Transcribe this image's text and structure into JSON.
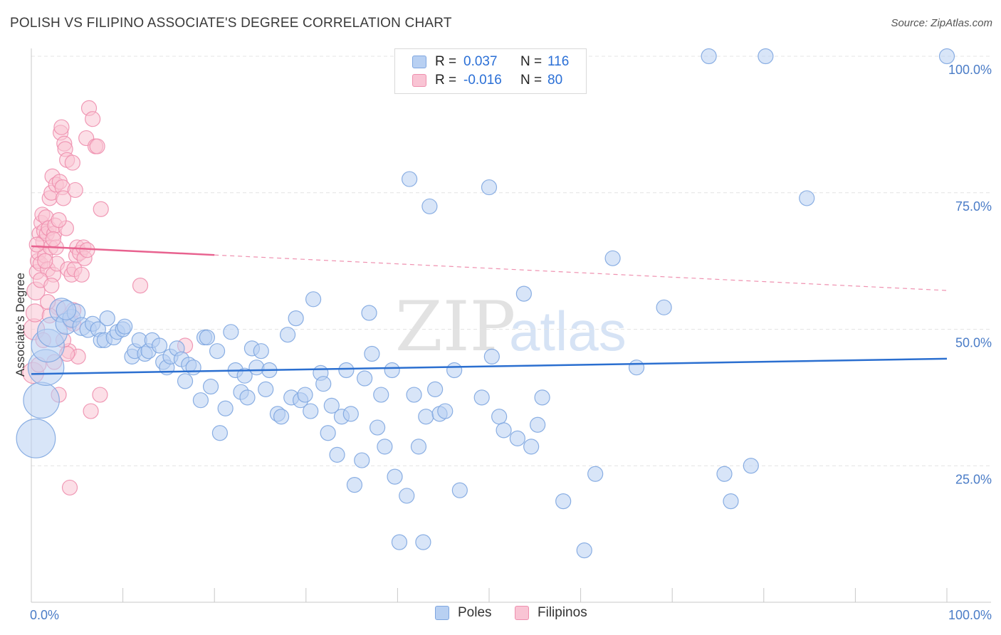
{
  "header": {
    "title": "POLISH VS FILIPINO ASSOCIATE'S DEGREE CORRELATION CHART",
    "source": "Source: ZipAtlas.com"
  },
  "legend_top": {
    "rows": [
      {
        "r_label": "R =",
        "r_value": "0.037",
        "n_label": "N =",
        "n_value": "116"
      },
      {
        "r_label": "R =",
        "r_value": "-0.016",
        "n_label": "N =",
        "n_value": "80"
      }
    ]
  },
  "legend_bottom": {
    "items": [
      {
        "label": "Poles"
      },
      {
        "label": "Filipinos"
      }
    ]
  },
  "axes": {
    "ylabel": "Associate's Degree",
    "yticks": [
      "25.0%",
      "50.0%",
      "75.0%",
      "100.0%"
    ],
    "xtick_left": "0.0%",
    "xtick_right": "100.0%"
  },
  "watermark": {
    "zip": "ZIP",
    "atlas": "atlas"
  },
  "colors": {
    "poles_fill": "#b8d0f2",
    "poles_stroke": "#7ea6e0",
    "poles_line": "#2b6fd0",
    "filipinos_fill": "#f9c4d4",
    "filipinos_stroke": "#ee8fae",
    "filipinos_line": "#e8628f",
    "tick_text": "#4a7cc7",
    "grid": "#e4e4e4"
  },
  "chart_data": {
    "type": "scatter",
    "xlim": [
      0,
      100
    ],
    "ylim": [
      0,
      103
    ],
    "grid": "horizontal dashed",
    "legend_placement": "top-center",
    "series": [
      {
        "name": "Poles",
        "r": 0.037,
        "n": 116,
        "trend": {
          "x": [
            0,
            100
          ],
          "y": [
            41.8,
            44.6
          ]
        },
        "points": [
          [
            0.5,
            30,
            2.6
          ],
          [
            1.1,
            37,
            2.4
          ],
          [
            1.6,
            43,
            2.4
          ],
          [
            1.8,
            47,
            2.2
          ],
          [
            2.3,
            49.5,
            2.0
          ],
          [
            3.3,
            53.5,
            1.6
          ],
          [
            3.8,
            51,
            1.4
          ],
          [
            4.4,
            52,
            1.2
          ],
          [
            4.9,
            53,
            1.2
          ],
          [
            5.5,
            50.5,
            1.2
          ],
          [
            6.2,
            50,
            1.1
          ],
          [
            6.7,
            51,
            1.0
          ],
          [
            7.3,
            50,
            1.0
          ],
          [
            7.6,
            48,
            1.0
          ],
          [
            8,
            48,
            1.0
          ],
          [
            8.3,
            52,
            1.0
          ],
          [
            9,
            48.5,
            1.0
          ],
          [
            9.4,
            49.5,
            1.0
          ],
          [
            10,
            50,
            1.0
          ],
          [
            10.2,
            50.5,
            1.0
          ],
          [
            11,
            45,
            1.0
          ],
          [
            11.3,
            46,
            1.0
          ],
          [
            11.8,
            48,
            1.0
          ],
          [
            12.4,
            45.5,
            1.0
          ],
          [
            12.8,
            46,
            1.0
          ],
          [
            13.2,
            48,
            1.0
          ],
          [
            14,
            47,
            1.0
          ],
          [
            14.4,
            44,
            1.0
          ],
          [
            14.8,
            43,
            1.0
          ],
          [
            15.2,
            45,
            1.0
          ],
          [
            15.9,
            46.5,
            1.0
          ],
          [
            16.4,
            44.5,
            1.0
          ],
          [
            16.8,
            40.5,
            1.0
          ],
          [
            17.2,
            43.5,
            1.0
          ],
          [
            17.7,
            43,
            1.0
          ],
          [
            18.5,
            37,
            1.0
          ],
          [
            18.9,
            48.5,
            1.0
          ],
          [
            19.2,
            48.5,
            1.0
          ],
          [
            19.6,
            39.5,
            1.0
          ],
          [
            20.3,
            46,
            1.0
          ],
          [
            20.6,
            31,
            1.0
          ],
          [
            21.2,
            35.5,
            1.0
          ],
          [
            21.8,
            49.5,
            1.0
          ],
          [
            22.3,
            42.5,
            1.0
          ],
          [
            22.9,
            38.5,
            1.0
          ],
          [
            23.3,
            41.5,
            1.0
          ],
          [
            23.6,
            37.5,
            1.0
          ],
          [
            24.1,
            46.5,
            1.0
          ],
          [
            24.6,
            43,
            1.0
          ],
          [
            25.1,
            46,
            1.0
          ],
          [
            25.6,
            39,
            1.0
          ],
          [
            26,
            42.5,
            1.0
          ],
          [
            26.9,
            34.5,
            1.0
          ],
          [
            27.3,
            34,
            1.0
          ],
          [
            28,
            49,
            1.0
          ],
          [
            28.4,
            37.5,
            1.0
          ],
          [
            28.9,
            52,
            1.0
          ],
          [
            29.4,
            37,
            1.0
          ],
          [
            29.9,
            38,
            1.0
          ],
          [
            30.5,
            35,
            1.0
          ],
          [
            30.8,
            55.5,
            1.0
          ],
          [
            31.6,
            42,
            1.0
          ],
          [
            31.9,
            40,
            1.0
          ],
          [
            32.4,
            31,
            1.0
          ],
          [
            32.8,
            36,
            1.0
          ],
          [
            33.4,
            27,
            1.0
          ],
          [
            33.9,
            34,
            1.0
          ],
          [
            34.4,
            42.5,
            1.0
          ],
          [
            34.9,
            34.5,
            1.0
          ],
          [
            35.3,
            21.5,
            1.0
          ],
          [
            36.1,
            26,
            1.0
          ],
          [
            36.4,
            41,
            1.0
          ],
          [
            36.9,
            53,
            1.0
          ],
          [
            37.2,
            45.5,
            1.0
          ],
          [
            37.8,
            32,
            1.0
          ],
          [
            38.2,
            38,
            1.0
          ],
          [
            38.6,
            28.5,
            1.0
          ],
          [
            39.4,
            42.5,
            1.0
          ],
          [
            39.7,
            23,
            1.0
          ],
          [
            40.2,
            11,
            1.0
          ],
          [
            41,
            19.5,
            1.0
          ],
          [
            41.3,
            77.5,
            1.0
          ],
          [
            41.8,
            38,
            1.0
          ],
          [
            42.3,
            28.5,
            1.0
          ],
          [
            42.8,
            11,
            1.0
          ],
          [
            43.1,
            34,
            1.0
          ],
          [
            43.5,
            72.5,
            1.0
          ],
          [
            44.1,
            39,
            1.0
          ],
          [
            44.6,
            34.5,
            1.0
          ],
          [
            45.2,
            35,
            1.0
          ],
          [
            46.2,
            42.5,
            1.0
          ],
          [
            46.8,
            20.5,
            1.0
          ],
          [
            49.2,
            37.5,
            1.0
          ],
          [
            50,
            76,
            1.0
          ],
          [
            50.3,
            45,
            1.0
          ],
          [
            51.1,
            34,
            1.0
          ],
          [
            51.6,
            31.5,
            1.0
          ],
          [
            53.1,
            30,
            1.0
          ],
          [
            53.8,
            56.5,
            1.0
          ],
          [
            54.6,
            28.5,
            1.0
          ],
          [
            55.3,
            32.5,
            1.0
          ],
          [
            55.8,
            37.5,
            1.0
          ],
          [
            58.1,
            18.5,
            1.0
          ],
          [
            60.4,
            9.5,
            1.0
          ],
          [
            61.6,
            23.5,
            1.0
          ],
          [
            63.5,
            63,
            1.0
          ],
          [
            66.1,
            43,
            1.0
          ],
          [
            69.1,
            54,
            1.0
          ],
          [
            74,
            100,
            1.0
          ],
          [
            75.7,
            23.5,
            1.0
          ],
          [
            76.4,
            18.5,
            1.0
          ],
          [
            78.6,
            25,
            1.0
          ],
          [
            80.2,
            100,
            1.0
          ],
          [
            84.7,
            74,
            1.0
          ],
          [
            100,
            100,
            1.0
          ],
          [
            3.8,
            53.5,
            1.3
          ]
        ]
      },
      {
        "name": "Filipinos",
        "r": -0.016,
        "n": 80,
        "trend": {
          "x": [
            0,
            20,
            100
          ],
          "y": [
            65.2,
            63.6,
            57.1
          ]
        },
        "points": [
          [
            0.2,
            42,
            1.4
          ],
          [
            0.3,
            50,
            1.4
          ],
          [
            0.4,
            53,
            1.2
          ],
          [
            0.5,
            57,
            1.2
          ],
          [
            0.6,
            60.5,
            1.0
          ],
          [
            0.7,
            62.5,
            1.0
          ],
          [
            0.8,
            64,
            1.0
          ],
          [
            0.9,
            67.5,
            1.0
          ],
          [
            1.0,
            62,
            1.0
          ],
          [
            1.1,
            69.5,
            1.0
          ],
          [
            1.2,
            71,
            1.0
          ],
          [
            1.3,
            66,
            1.0
          ],
          [
            1.4,
            68,
            1.0
          ],
          [
            1.5,
            63.5,
            1.0
          ],
          [
            1.6,
            70.5,
            1.0
          ],
          [
            1.7,
            67.5,
            1.0
          ],
          [
            1.8,
            61,
            1.0
          ],
          [
            1.9,
            68.5,
            1.0
          ],
          [
            2.0,
            74,
            1.0
          ],
          [
            2.1,
            65,
            1.0
          ],
          [
            2.2,
            75,
            1.0
          ],
          [
            2.3,
            78,
            1.0
          ],
          [
            2.4,
            60,
            1.0
          ],
          [
            2.5,
            67.5,
            1.0
          ],
          [
            2.6,
            69,
            1.0
          ],
          [
            2.7,
            76.5,
            1.0
          ],
          [
            2.8,
            62,
            1.0
          ],
          [
            2.9,
            54,
            1.0
          ],
          [
            3.0,
            38,
            1.0
          ],
          [
            3.1,
            77,
            1.0
          ],
          [
            3.2,
            86,
            1.0
          ],
          [
            3.3,
            87,
            1.0
          ],
          [
            3.4,
            76,
            1.0
          ],
          [
            3.5,
            74,
            1.0
          ],
          [
            3.6,
            84,
            1.0
          ],
          [
            3.7,
            83,
            1.0
          ],
          [
            3.8,
            68.5,
            1.0
          ],
          [
            3.9,
            81,
            1.0
          ],
          [
            4.0,
            61,
            1.0
          ],
          [
            4.1,
            46,
            1.0
          ],
          [
            4.2,
            21,
            1.0
          ],
          [
            4.3,
            51.5,
            1.0
          ],
          [
            4.4,
            60,
            1.0
          ],
          [
            4.5,
            80.5,
            1.0
          ],
          [
            4.6,
            53.5,
            1.0
          ],
          [
            4.7,
            61,
            1.0
          ],
          [
            4.8,
            75.5,
            1.0
          ],
          [
            4.9,
            63.5,
            1.0
          ],
          [
            5.0,
            65,
            1.0
          ],
          [
            5.1,
            45,
            1.0
          ],
          [
            5.3,
            64,
            1.0
          ],
          [
            5.5,
            60,
            1.0
          ],
          [
            5.7,
            65,
            1.0
          ],
          [
            5.8,
            63,
            1.0
          ],
          [
            6.0,
            85,
            1.0
          ],
          [
            6.1,
            64.5,
            1.0
          ],
          [
            6.3,
            90.5,
            1.0
          ],
          [
            6.5,
            35,
            1.0
          ],
          [
            6.7,
            88.5,
            1.0
          ],
          [
            7.0,
            83.5,
            1.0
          ],
          [
            7.2,
            83.5,
            1.0
          ],
          [
            7.5,
            38,
            1.0
          ],
          [
            7.6,
            72,
            1.0
          ],
          [
            11.9,
            58,
            1.0
          ],
          [
            16.8,
            47,
            1.0
          ],
          [
            2.5,
            44,
            1.0
          ],
          [
            1.5,
            62.5,
            1.0
          ],
          [
            2.0,
            52.5,
            1.0
          ],
          [
            0.8,
            43.5,
            1.0
          ],
          [
            1.0,
            59,
            1.0
          ],
          [
            3.5,
            48,
            1.0
          ],
          [
            2.7,
            65,
            1.0
          ],
          [
            1.3,
            48,
            1.0
          ],
          [
            0.6,
            65.5,
            1.0
          ],
          [
            2.2,
            58,
            1.0
          ],
          [
            3.9,
            45.5,
            1.0
          ],
          [
            4.6,
            51,
            1.0
          ],
          [
            1.8,
            55,
            1.0
          ],
          [
            3.0,
            70,
            1.0
          ],
          [
            2.4,
            66.5,
            1.0
          ]
        ]
      }
    ]
  }
}
